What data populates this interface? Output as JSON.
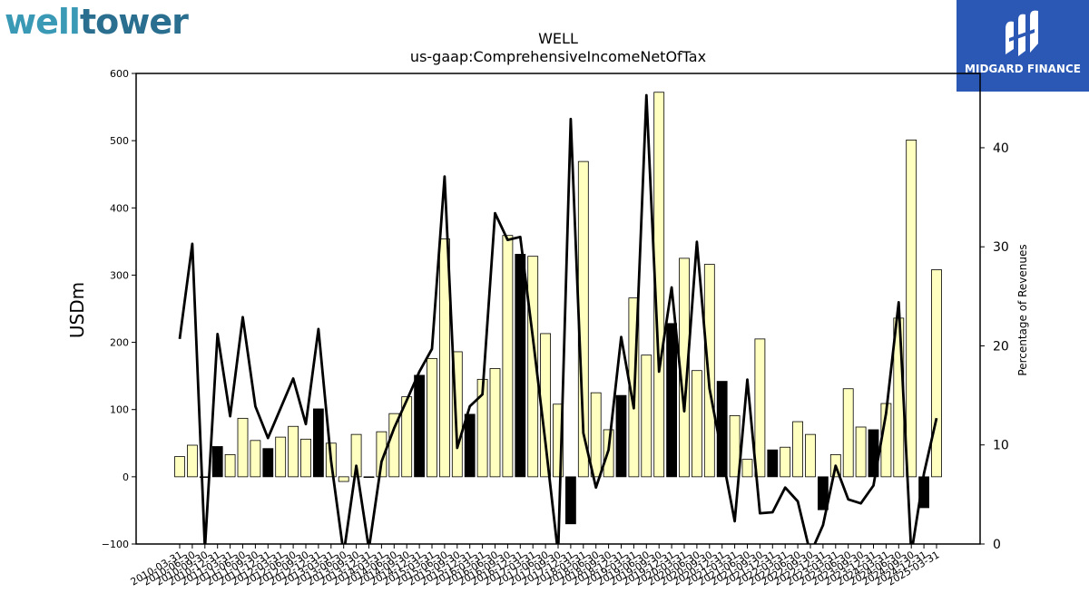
{
  "logo": {
    "part1": "well",
    "part2": "tower"
  },
  "badge": {
    "name": "MIDGARD FINANCE"
  },
  "chart_data": {
    "type": "bar",
    "title": "WELL",
    "subtitle": "us-gaap:ComprehensiveIncomeNetOfTax",
    "ylabel": "USDm",
    "y2label": "Percentage of Revenues",
    "ylim": [
      -100,
      600
    ],
    "y2lim": [
      0,
      47.5
    ],
    "yticks": [
      -100,
      0,
      100,
      200,
      300,
      400,
      500,
      600
    ],
    "y2ticks": [
      0,
      10,
      20,
      30,
      40
    ],
    "colors": {
      "bar": "#ffffc0",
      "highlight": "#000000",
      "line": "#000000"
    },
    "categories": [
      "2010-03-31",
      "2010-06-30",
      "2010-09-30",
      "2010-12-31",
      "2011-03-31",
      "2011-06-30",
      "2011-09-30",
      "2011-12-31",
      "2012-03-31",
      "2012-06-30",
      "2012-09-30",
      "2012-12-31",
      "2013-03-31",
      "2013-06-30",
      "2013-09-30",
      "2013-12-31",
      "2014-03-31",
      "2014-06-30",
      "2014-09-30",
      "2014-12-31",
      "2015-03-31",
      "2015-06-30",
      "2015-09-30",
      "2015-12-31",
      "2016-03-31",
      "2016-06-30",
      "2016-09-30",
      "2016-12-31",
      "2017-03-31",
      "2017-06-30",
      "2017-09-30",
      "2017-12-31",
      "2018-03-31",
      "2018-06-30",
      "2018-09-30",
      "2018-12-31",
      "2019-03-31",
      "2019-06-30",
      "2019-09-30",
      "2019-12-31",
      "2020-03-31",
      "2020-06-30",
      "2020-09-30",
      "2020-12-31",
      "2021-03-31",
      "2021-06-30",
      "2021-09-30",
      "2021-12-31",
      "2022-03-31",
      "2022-06-30",
      "2022-09-30",
      "2022-12-31",
      "2023-03-31",
      "2023-06-30",
      "2023-09-30",
      "2023-12-31",
      "2024-03-31",
      "2024-06-30",
      "2024-09-30",
      "2024-12-31",
      "2025-03-31"
    ],
    "series": [
      {
        "kind": "bar",
        "values": [
          30,
          47,
          0,
          45,
          33,
          87,
          54,
          42,
          59,
          75,
          56,
          101,
          50,
          -7,
          63,
          -1,
          67,
          94,
          119,
          151,
          176,
          354,
          186,
          93,
          145,
          161,
          359,
          331,
          328,
          213,
          108,
          -70,
          469,
          125,
          70,
          121,
          266,
          181,
          572,
          228,
          325,
          158,
          316,
          142,
          91,
          26,
          205,
          40,
          44,
          82,
          63,
          -49,
          33,
          131,
          74,
          70,
          109,
          236,
          501,
          -46,
          308
        ],
        "highlight": [
          3,
          7,
          11,
          19,
          23,
          27,
          31,
          35,
          39,
          43,
          47,
          51,
          55,
          59
        ]
      },
      {
        "kind": "line",
        "axis": "right",
        "values": [
          20.7,
          30.3,
          -0.5,
          21.2,
          12.9,
          22.9,
          13.9,
          10.7,
          13.7,
          16.7,
          12.1,
          21.7,
          8.4,
          -1.0,
          7.9,
          -0.5,
          8.3,
          11.7,
          14.5,
          17.4,
          19.7,
          37.1,
          9.7,
          13.9,
          15.1,
          33.4,
          30.7,
          31.0,
          20.8,
          10.2,
          -1.0,
          42.9,
          11.2,
          5.7,
          9.5,
          20.9,
          13.7,
          45.3,
          17.4,
          25.9,
          13.4,
          30.5,
          15.7,
          9.0,
          2.3,
          16.6,
          3.1,
          3.2,
          5.7,
          4.3,
          -1.0,
          1.9,
          7.9,
          4.5,
          4.1,
          5.9,
          13.2,
          24.4,
          -1.0,
          7.1,
          12.7
        ]
      }
    ]
  }
}
